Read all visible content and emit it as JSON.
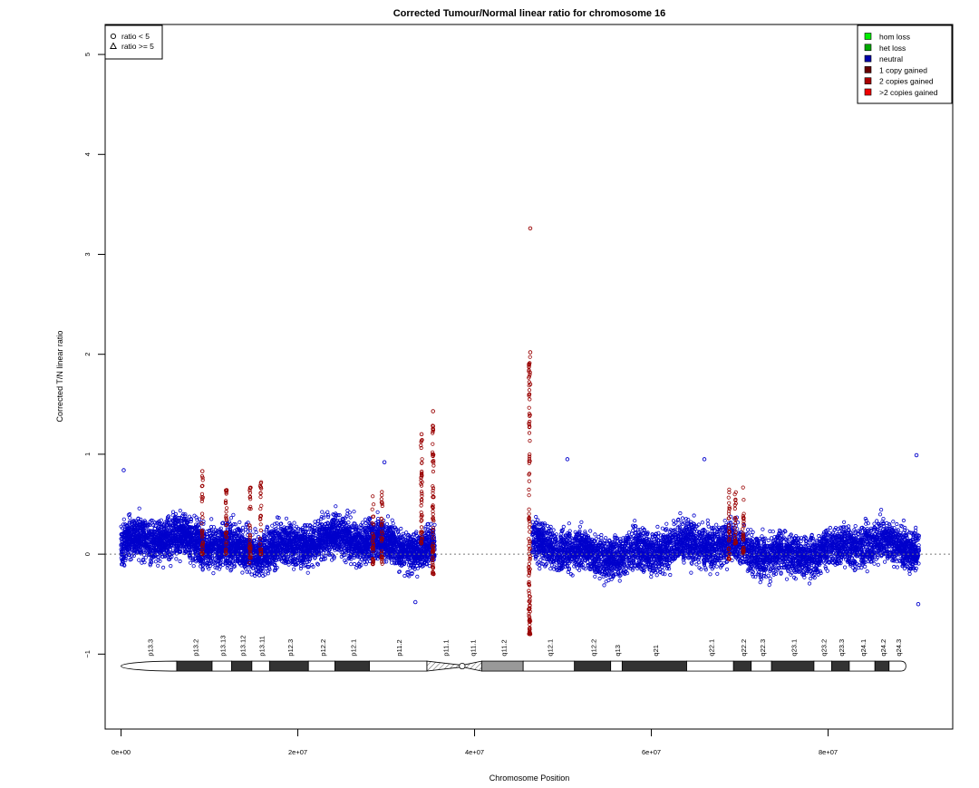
{
  "chart_data": {
    "type": "scatter",
    "title": "Corrected Tumour/Normal linear ratio for chromosome  16",
    "xlabel": "Chromosome Position",
    "ylabel": "Corrected T/N linear ratio",
    "xlim": [
      -1800000,
      94100000
    ],
    "ylim": [
      -1.75,
      5.3
    ],
    "x_ticks": [
      0,
      20000000,
      40000000,
      60000000,
      80000000
    ],
    "x_tick_labels": [
      "0e+00",
      "2e+07",
      "4e+07",
      "6e+07",
      "8e+07"
    ],
    "y_ticks": [
      -1,
      0,
      1,
      2,
      3,
      4,
      5
    ],
    "y_tick_labels": [
      "−1",
      "0",
      "1",
      "2",
      "3",
      "4",
      "5"
    ],
    "reference_line": 0,
    "shape_legend": {
      "placement": "top-left",
      "entries": [
        {
          "label": "ratio < 5",
          "shape": "circle"
        },
        {
          "label": "ratio >= 5",
          "shape": "triangle"
        }
      ]
    },
    "color_legend": {
      "placement": "top-right",
      "entries": [
        {
          "label": "hom loss",
          "color": "#00ee00"
        },
        {
          "label": "het loss",
          "color": "#00aa00"
        },
        {
          "label": "neutral",
          "color": "#0000aa"
        },
        {
          "label": "1 copy gained",
          "color": "#660000"
        },
        {
          "label": "2 copies gained",
          "color": "#aa0000"
        },
        {
          "label": ">2 copies gained",
          "color": "#ee0000"
        }
      ]
    },
    "series": [
      {
        "status": "neutral",
        "color": "#0000cc",
        "segments": [
          {
            "x_range": [
              0,
              35500000
            ],
            "center": 0.1,
            "spread": 0.55
          },
          {
            "x_range": [
              46500000,
              90300000
            ],
            "center": 0.05,
            "spread": 0.55
          }
        ],
        "notable_points": [
          {
            "x": 300000,
            "y": 0.84
          },
          {
            "x": 29800000,
            "y": 0.92
          },
          {
            "x": 50500000,
            "y": 0.95
          },
          {
            "x": 66000000,
            "y": 0.95
          },
          {
            "x": 90000000,
            "y": 0.99
          },
          {
            "x": 90200000,
            "y": -0.5
          },
          {
            "x": 33300000,
            "y": -0.48
          }
        ]
      },
      {
        "status": "1 copy gained",
        "color": "#990000",
        "segments": [
          {
            "x": 9200000,
            "y_range": [
              0,
              0.83
            ]
          },
          {
            "x": 11900000,
            "y_range": [
              0,
              0.73
            ]
          },
          {
            "x": 14600000,
            "y_range": [
              -0.1,
              0.75
            ]
          },
          {
            "x": 15800000,
            "y_range": [
              0,
              0.73
            ]
          },
          {
            "x": 28500000,
            "y_range": [
              -0.1,
              0.65
            ]
          },
          {
            "x": 29500000,
            "y_range": [
              -0.1,
              0.65
            ]
          },
          {
            "x": 34000000,
            "y_range": [
              0.1,
              1.2
            ]
          },
          {
            "x": 35300000,
            "y_range": [
              -0.2,
              1.43
            ]
          },
          {
            "x": 46200000,
            "y_range": [
              -0.8,
              2.02
            ]
          },
          {
            "x": 68800000,
            "y_range": [
              -0.05,
              0.68
            ]
          },
          {
            "x": 69500000,
            "y_range": [
              0.1,
              0.68
            ]
          },
          {
            "x": 70400000,
            "y_range": [
              0,
              0.68
            ]
          }
        ],
        "notable_points": [
          {
            "x": 46300000,
            "y": 3.26
          },
          {
            "x": 46300000,
            "y": 2.02
          },
          {
            "x": 46300000,
            "y": 1.7
          },
          {
            "x": 46300000,
            "y": -0.67
          },
          {
            "x": 46300000,
            "y": -0.8
          },
          {
            "x": 35300000,
            "y": 1.43
          },
          {
            "x": 35300000,
            "y": 1.25
          },
          {
            "x": 34000000,
            "y": 1.2
          },
          {
            "x": 9200000,
            "y": 0.83
          }
        ]
      }
    ],
    "ideogram": {
      "y_center": -1.12,
      "bands": [
        {
          "name": "p13.3",
          "start": 0,
          "end": 6300000,
          "stain": "gneg"
        },
        {
          "name": "p13.2",
          "start": 6300000,
          "end": 10300000,
          "stain": "gpos"
        },
        {
          "name": "p13.13",
          "start": 10300000,
          "end": 12500000,
          "stain": "gneg"
        },
        {
          "name": "p13.12",
          "start": 12500000,
          "end": 14800000,
          "stain": "gpos"
        },
        {
          "name": "p13.11",
          "start": 14800000,
          "end": 16800000,
          "stain": "gneg"
        },
        {
          "name": "p12.3",
          "start": 16800000,
          "end": 21200000,
          "stain": "gpos"
        },
        {
          "name": "p12.2",
          "start": 21200000,
          "end": 24200000,
          "stain": "gneg"
        },
        {
          "name": "p12.1",
          "start": 24200000,
          "end": 28100000,
          "stain": "gpos"
        },
        {
          "name": "p11.2",
          "start": 28100000,
          "end": 34600000,
          "stain": "gneg"
        },
        {
          "name": "p11.1",
          "start": 34600000,
          "end": 38600000,
          "stain": "acen"
        },
        {
          "name": "q11.1",
          "start": 38600000,
          "end": 40800000,
          "stain": "acen"
        },
        {
          "name": "q11.2",
          "start": 40800000,
          "end": 45500000,
          "stain": "gvar"
        },
        {
          "name": "q12.1",
          "start": 45500000,
          "end": 51300000,
          "stain": "gneg"
        },
        {
          "name": "q12.2",
          "start": 51300000,
          "end": 55400000,
          "stain": "gpos"
        },
        {
          "name": "q13",
          "start": 55400000,
          "end": 56700000,
          "stain": "gneg"
        },
        {
          "name": "q21",
          "start": 56700000,
          "end": 64000000,
          "stain": "gpos"
        },
        {
          "name": "q22.1",
          "start": 64000000,
          "end": 69300000,
          "stain": "gneg"
        },
        {
          "name": "q22.2",
          "start": 69300000,
          "end": 71300000,
          "stain": "gpos"
        },
        {
          "name": "q22.3",
          "start": 71300000,
          "end": 73600000,
          "stain": "gneg"
        },
        {
          "name": "q23.1",
          "start": 73600000,
          "end": 78400000,
          "stain": "gpos"
        },
        {
          "name": "q23.2",
          "start": 78400000,
          "end": 80400000,
          "stain": "gneg"
        },
        {
          "name": "q23.3",
          "start": 80400000,
          "end": 82400000,
          "stain": "gpos"
        },
        {
          "name": "q24.1",
          "start": 82400000,
          "end": 85300000,
          "stain": "gneg"
        },
        {
          "name": "q24.2",
          "start": 85300000,
          "end": 86900000,
          "stain": "gpos"
        },
        {
          "name": "q24.3",
          "start": 86900000,
          "end": 88800000,
          "stain": "gneg"
        }
      ]
    }
  }
}
